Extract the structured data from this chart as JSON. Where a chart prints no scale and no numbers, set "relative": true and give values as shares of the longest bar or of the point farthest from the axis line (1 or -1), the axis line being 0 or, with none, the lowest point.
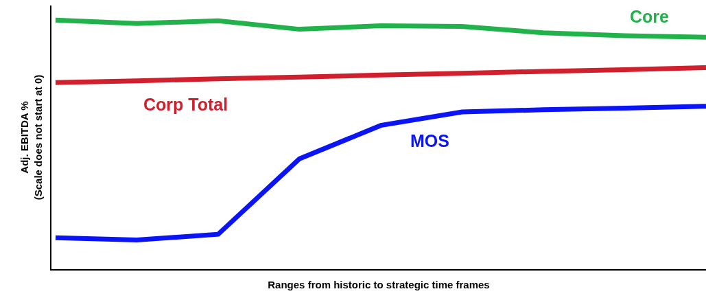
{
  "chart_data": {
    "type": "line",
    "relative": true,
    "xlabel": "Ranges from historic to strategic time frames",
    "ylabel": "Adj. EBITDA %\n(Scale does not start at 0)",
    "categories": [
      null,
      null,
      null,
      null,
      null,
      null,
      null,
      null,
      null
    ],
    "legend": false,
    "grid": false,
    "marker": "none",
    "line_style": "solid",
    "series": [
      {
        "name": "Core",
        "color": "#21b24b",
        "values": [
          1.0,
          0.986,
          0.997,
          0.963,
          0.977,
          0.974,
          0.949,
          0.937,
          0.931
        ]
      },
      {
        "name": "Corp Total",
        "color": "#d0202e",
        "values": [
          0.749,
          0.756,
          0.764,
          0.771,
          0.779,
          0.786,
          0.794,
          0.801,
          0.809
        ]
      },
      {
        "name": "MOS",
        "color": "#0a14f5",
        "values": [
          0.126,
          0.117,
          0.14,
          0.443,
          0.577,
          0.631,
          0.64,
          0.646,
          0.654
        ]
      }
    ]
  }
}
